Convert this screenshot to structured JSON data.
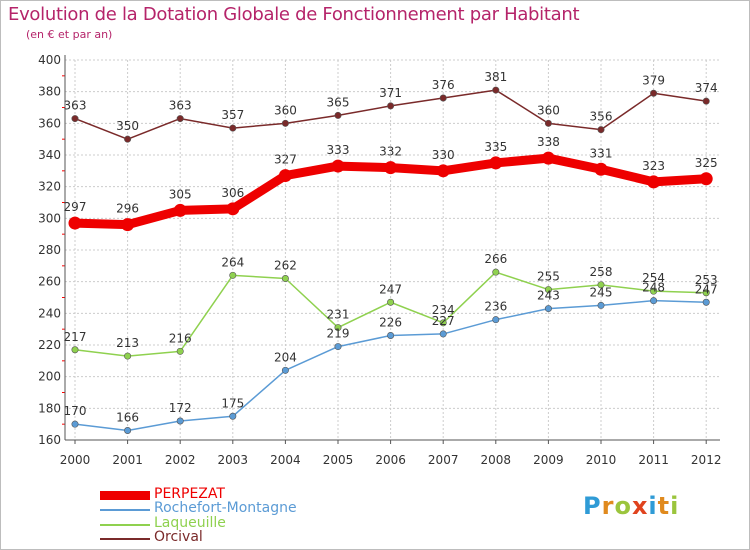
{
  "title": "Evolution de la Dotation Globale de Fonctionnement par Habitant",
  "subtitle": "(en € et par an)",
  "logo": {
    "text": "Proxiti",
    "letters": [
      {
        "ch": "P",
        "color": "#2f9bd6"
      },
      {
        "ch": "r",
        "color": "#e08a1e"
      },
      {
        "ch": "o",
        "color": "#9bc53d"
      },
      {
        "ch": "x",
        "color": "#e0431e"
      },
      {
        "ch": "i",
        "color": "#2f9bd6"
      },
      {
        "ch": "t",
        "color": "#e08a1e"
      },
      {
        "ch": "i",
        "color": "#9bc53d"
      }
    ]
  },
  "colors": {
    "title": "#b5246a",
    "axis": "#555555",
    "grid": "#cccccc",
    "tick_accent": "#ff0000"
  },
  "chart_data": {
    "type": "line",
    "title": "Evolution de la Dotation Globale de Fonctionnement par Habitant",
    "subtitle": "(en € et par an)",
    "x": [
      "2000",
      "2001",
      "2002",
      "2003",
      "2004",
      "2005",
      "2006",
      "2007",
      "2008",
      "2009",
      "2010",
      "2011",
      "2012"
    ],
    "ylim": [
      160,
      400
    ],
    "yticks": [
      160,
      180,
      200,
      220,
      240,
      260,
      280,
      300,
      320,
      340,
      360,
      380,
      400
    ],
    "grid": true,
    "legend": "bottom-left",
    "series": [
      {
        "name": "PERPEZAT",
        "color": "#ee0000",
        "values": [
          297,
          296,
          305,
          306,
          327,
          333,
          332,
          330,
          335,
          338,
          331,
          323,
          325
        ]
      },
      {
        "name": "Rochefort-Montagne",
        "color": "#5b9bd5",
        "values": [
          170,
          166,
          172,
          175,
          204,
          219,
          226,
          227,
          236,
          243,
          245,
          248,
          247
        ]
      },
      {
        "name": "Laqueuille",
        "color": "#8fd14f",
        "values": [
          217,
          213,
          216,
          264,
          262,
          231,
          247,
          234,
          266,
          255,
          258,
          254,
          253
        ]
      },
      {
        "name": "Orcival",
        "color": "#7a2a2a",
        "values": [
          363,
          350,
          363,
          357,
          360,
          365,
          371,
          376,
          381,
          360,
          356,
          379,
          374
        ]
      }
    ]
  }
}
